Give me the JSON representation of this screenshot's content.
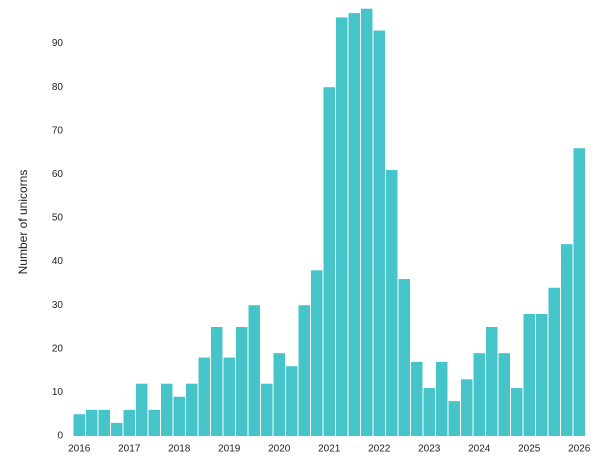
{
  "chart_data": {
    "type": "bar",
    "y_label": "Number of unicorns",
    "categories": [
      "2016",
      null,
      null,
      null,
      "2017",
      null,
      null,
      null,
      "2018",
      null,
      null,
      null,
      "2019",
      null,
      null,
      null,
      "2020",
      null,
      null,
      null,
      "2021",
      null,
      null,
      null,
      "2022",
      null,
      null,
      null,
      "2023",
      null,
      null,
      null,
      "2024",
      null,
      null,
      null,
      "2025",
      null,
      null,
      null,
      "2026"
    ],
    "values": [
      5,
      6,
      6,
      3,
      6,
      12,
      6,
      12,
      9,
      12,
      18,
      25,
      18,
      25,
      30,
      12,
      19,
      16,
      30,
      38,
      80,
      96,
      97,
      98,
      93,
      61,
      36,
      17,
      11,
      17,
      8,
      13,
      19,
      25,
      19,
      11,
      28,
      28,
      34,
      44,
      66
    ],
    "color": "#45c5c9",
    "ylim": [
      0,
      100
    ],
    "yticks": [
      0,
      10,
      20,
      30,
      40,
      50,
      60,
      70,
      80,
      90
    ],
    "grid": false
  }
}
